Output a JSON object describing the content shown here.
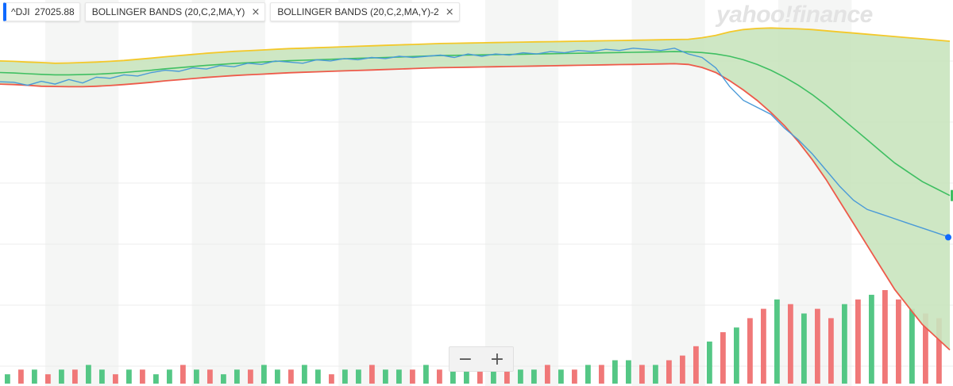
{
  "legend": {
    "symbol": "^DJI",
    "price": "27025.88",
    "indicator_1": "BOLLINGER BANDS (20,C,2,MA,Y)",
    "indicator_2": "BOLLINGER BANDS (20,C,2,MA,Y)-2",
    "close_glyph": "×"
  },
  "watermark": "yahoo!finance",
  "zoom": {
    "minus": "−",
    "plus": "+"
  },
  "colors": {
    "price_line": "#4a9ad8",
    "upper_band": "#f3c82a",
    "lower_band": "#ee5a4a",
    "middle_band": "#3fbf62",
    "band_fill": "#c9e4be",
    "volume_up": "#54c785",
    "volume_down": "#f07878",
    "stripe": "#f5f6f5"
  },
  "chart_data": {
    "type": "line",
    "series": [
      {
        "values": [
          28500,
          28480,
          28350,
          28520,
          28400,
          28600,
          28450,
          28700,
          28650,
          28800,
          28750,
          28900,
          29000,
          28950,
          29100,
          29050,
          29200,
          29150,
          29300,
          29250,
          29400,
          29350,
          29300,
          29450,
          29400,
          29500,
          29450,
          29550,
          29500,
          29600,
          29550,
          29600,
          29650,
          29550,
          29700,
          29600,
          29700,
          29650,
          29750,
          29700,
          29800,
          29750,
          29850,
          29800,
          29900,
          29850,
          29950,
          29900,
          29850,
          29950,
          29700,
          29550,
          29100,
          28300,
          27700,
          27400,
          27100,
          26500,
          26000,
          25400,
          24700,
          24000,
          23400,
          23000,
          22800,
          22600,
          22400,
          22200,
          22000,
          21800
        ]
      },
      {
        "values": [
          28900,
          28880,
          28850,
          28820,
          28800,
          28800,
          28810,
          28830,
          28860,
          28900,
          28950,
          29000,
          29060,
          29110,
          29160,
          29210,
          29250,
          29290,
          29320,
          29350,
          29380,
          29410,
          29430,
          29450,
          29470,
          29490,
          29510,
          29530,
          29550,
          29570,
          29590,
          29610,
          29630,
          29640,
          29650,
          29660,
          29670,
          29680,
          29690,
          29700,
          29710,
          29720,
          29730,
          29740,
          29750,
          29760,
          29770,
          29780,
          29790,
          29800,
          29790,
          29760,
          29700,
          29600,
          29450,
          29250,
          29000,
          28700,
          28350,
          27950,
          27500,
          27000,
          26500,
          26000,
          25500,
          25000,
          24600,
          24200,
          23900,
          23600
        ]
      },
      {
        "values": [
          29400,
          29380,
          29350,
          29330,
          29300,
          29310,
          29330,
          29350,
          29380,
          29420,
          29470,
          29520,
          29580,
          29630,
          29680,
          29730,
          29770,
          29810,
          29840,
          29870,
          29900,
          29930,
          29950,
          29970,
          29990,
          30010,
          30030,
          30050,
          30070,
          30090,
          30110,
          30130,
          30150,
          30160,
          30170,
          30180,
          30190,
          30200,
          30210,
          30220,
          30230,
          30240,
          30250,
          30260,
          30270,
          30280,
          30290,
          30300,
          30310,
          30320,
          30330,
          30400,
          30500,
          30650,
          30750,
          30800,
          30820,
          30800,
          30780,
          30750,
          30700,
          30650,
          30600,
          30550,
          30500,
          30450,
          30400,
          30350,
          30300,
          30250
        ]
      },
      {
        "values": [
          28400,
          28380,
          28350,
          28310,
          28300,
          28290,
          28290,
          28310,
          28340,
          28380,
          28430,
          28480,
          28540,
          28590,
          28640,
          28690,
          28730,
          28770,
          28800,
          28830,
          28860,
          28890,
          28910,
          28930,
          28950,
          28970,
          28990,
          29010,
          29030,
          29050,
          29070,
          29090,
          29110,
          29120,
          29130,
          29140,
          29150,
          29160,
          29170,
          29180,
          29190,
          29200,
          29210,
          29220,
          29230,
          29240,
          29250,
          29260,
          29270,
          29280,
          29250,
          29120,
          28900,
          28550,
          28150,
          27700,
          27180,
          26600,
          25920,
          25150,
          24300,
          23350,
          22400,
          21450,
          20500,
          19550,
          18800,
          18050,
          17500,
          16950
        ]
      }
    ],
    "volume": {
      "values": [
        2,
        3,
        3,
        2,
        3,
        3,
        4,
        3,
        2,
        3,
        3,
        2,
        3,
        4,
        3,
        3,
        2,
        3,
        3,
        4,
        3,
        3,
        4,
        3,
        2,
        3,
        3,
        4,
        3,
        3,
        3,
        4,
        3,
        3,
        5,
        3,
        3,
        4,
        3,
        3,
        4,
        3,
        3,
        4,
        4,
        5,
        5,
        4,
        4,
        5,
        6,
        8,
        9,
        11,
        12,
        14,
        16,
        18,
        17,
        15,
        16,
        14,
        17,
        18,
        19,
        20,
        18,
        16,
        15,
        14
      ],
      "direction": [
        "up",
        "down",
        "up",
        "down",
        "up",
        "down",
        "up",
        "up",
        "down",
        "up",
        "down",
        "up",
        "up",
        "down",
        "up",
        "down",
        "up",
        "up",
        "down",
        "up",
        "up",
        "down",
        "up",
        "up",
        "down",
        "up",
        "up",
        "down",
        "up",
        "up",
        "down",
        "up",
        "down",
        "up",
        "up",
        "down",
        "up",
        "down",
        "up",
        "up",
        "down",
        "up",
        "down",
        "up",
        "down",
        "up",
        "up",
        "down",
        "up",
        "down",
        "down",
        "down",
        "up",
        "down",
        "up",
        "down",
        "down",
        "up",
        "down",
        "up",
        "down",
        "down",
        "up",
        "down",
        "up",
        "down",
        "down",
        "up",
        "down",
        "down"
      ]
    },
    "grid": true
  }
}
